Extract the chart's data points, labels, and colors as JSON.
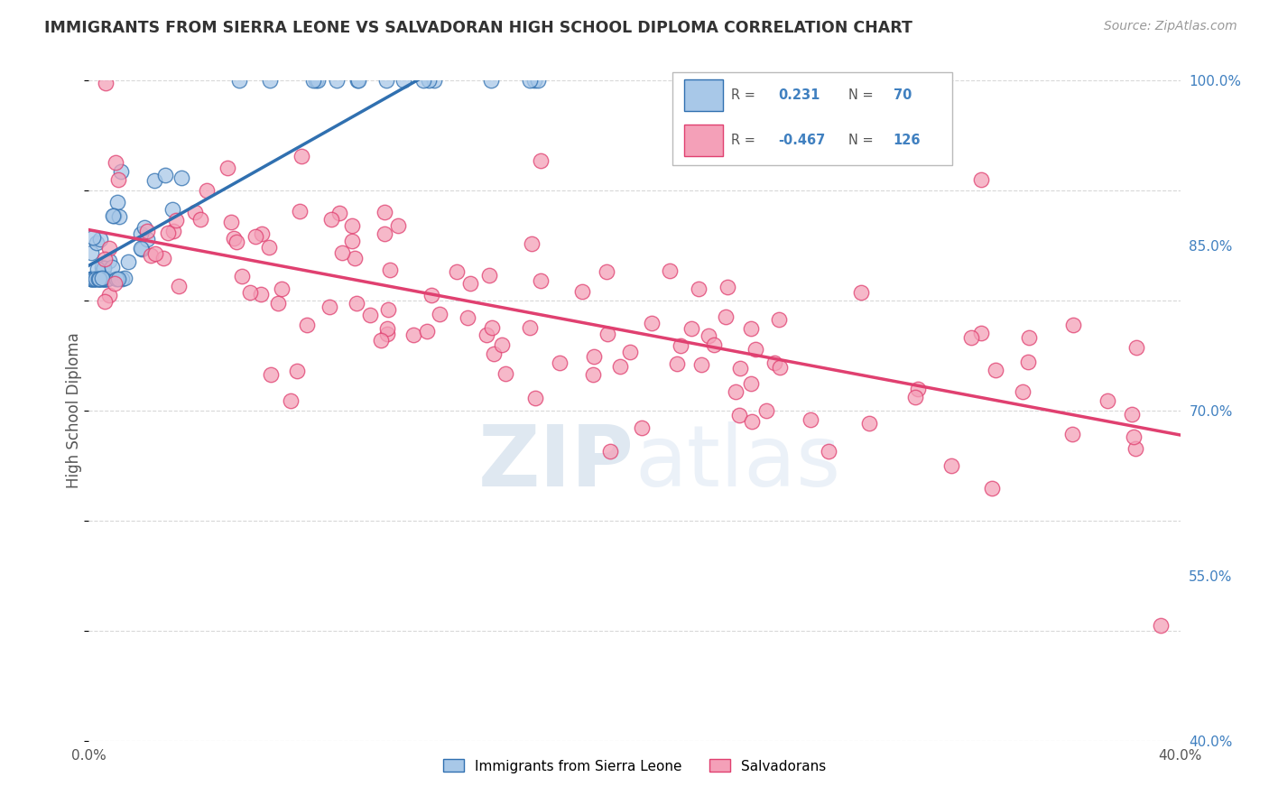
{
  "title": "IMMIGRANTS FROM SIERRA LEONE VS SALVADORAN HIGH SCHOOL DIPLOMA CORRELATION CHART",
  "source": "Source: ZipAtlas.com",
  "ylabel": "High School Diploma",
  "legend_labels": [
    "Immigrants from Sierra Leone",
    "Salvadorans"
  ],
  "blue_R": 0.231,
  "blue_N": 70,
  "pink_R": -0.467,
  "pink_N": 126,
  "xlim": [
    0.0,
    0.4
  ],
  "ylim": [
    0.4,
    1.0
  ],
  "xticks": [
    0.0,
    0.05,
    0.1,
    0.15,
    0.2,
    0.25,
    0.3,
    0.35,
    0.4
  ],
  "yticks": [
    0.4,
    0.55,
    0.7,
    0.85,
    1.0
  ],
  "ytick_labels": [
    "40.0%",
    "55.0%",
    "70.0%",
    "85.0%",
    "100.0%"
  ],
  "blue_color": "#a8c8e8",
  "pink_color": "#f4a0b8",
  "blue_line_color": "#3070b0",
  "pink_line_color": "#e04070",
  "watermark_color": "#c8d8ec"
}
